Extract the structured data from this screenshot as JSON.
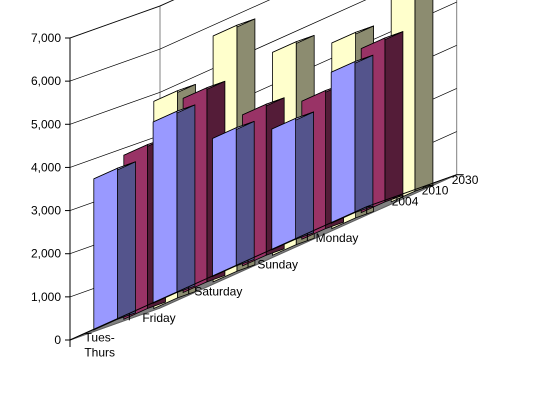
{
  "chart_data": {
    "type": "bar",
    "style": "3d-clustered-depth",
    "categories": [
      "Tues-Thurs",
      "Friday",
      "Saturday",
      "Sunday",
      "Monday"
    ],
    "category_lines": [
      [
        "Tues-",
        "Thurs"
      ],
      [
        "Friday"
      ],
      [
        "Saturday"
      ],
      [
        "Sunday"
      ],
      [
        "Monday"
      ]
    ],
    "series": [
      {
        "name": "2004",
        "color": "#9999ff",
        "values": [
          3500,
          4200,
          3200,
          2800,
          3500
        ]
      },
      {
        "name": "2010",
        "color": "#993366",
        "values": [
          3800,
          4500,
          3500,
          3200,
          3800
        ]
      },
      {
        "name": "2030",
        "color": "#ffffcc",
        "values": [
          4800,
          5700,
          4700,
          4300,
          5000
        ]
      }
    ],
    "y_ticks": [
      0,
      1000,
      2000,
      3000,
      4000,
      5000,
      6000,
      7000
    ],
    "y_tick_labels": [
      "0",
      "1,000",
      "2,000",
      "3,000",
      "4,000",
      "5,000",
      "6,000",
      "7,000"
    ],
    "ylim": [
      0,
      7000
    ],
    "depth_labels": [
      "2004",
      "2010",
      "2030"
    ],
    "title": "",
    "xlabel": "",
    "ylabel": "",
    "grid": true,
    "legend": "none"
  }
}
